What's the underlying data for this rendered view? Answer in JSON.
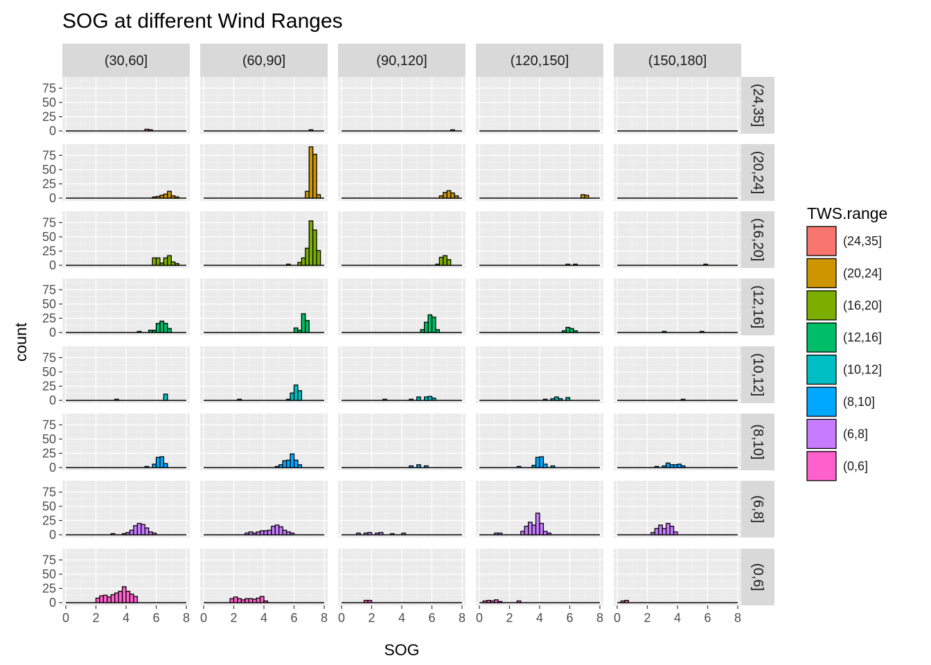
{
  "chart_data": {
    "type": "bar",
    "title": "SOG at different Wind Ranges",
    "xlabel": "SOG",
    "ylabel": "count",
    "xlim": [
      0,
      8
    ],
    "ylim": [
      0,
      90
    ],
    "x_ticks": [
      "0",
      "2",
      "4",
      "6",
      "8"
    ],
    "y_ticks": [
      "0",
      "25",
      "50",
      "75"
    ],
    "binwidth": 0.25,
    "columns": [
      "(30,60]",
      "(60,90]",
      "(90,120]",
      "(120,150]",
      "(150,180]"
    ],
    "rows": [
      "(24,35]",
      "(20,24]",
      "(16,20]",
      "(12,16]",
      "(10,12]",
      "(8,10]",
      "(6,8]",
      "(0,6]"
    ],
    "legend": {
      "title": "TWS.range",
      "placement": "right",
      "items": [
        {
          "label": "(24,35]",
          "color": "#F8766D"
        },
        {
          "label": "(20,24]",
          "color": "#CD9600"
        },
        {
          "label": "(16,20]",
          "color": "#7CAE00"
        },
        {
          "label": "(12,16]",
          "color": "#00BE67"
        },
        {
          "label": "(10,12]",
          "color": "#00BFC4"
        },
        {
          "label": "(8,10]",
          "color": "#00A9FF"
        },
        {
          "label": "(6,8]",
          "color": "#C77CFF"
        },
        {
          "label": "(0,6]",
          "color": "#FF61CC"
        }
      ]
    },
    "panels": [
      {
        "row": "(24,35]",
        "col": "(30,60]",
        "bins": [
          [
            5.375,
            3
          ],
          [
            5.625,
            2
          ]
        ]
      },
      {
        "row": "(24,35]",
        "col": "(60,90]",
        "bins": [
          [
            7.125,
            2
          ]
        ]
      },
      {
        "row": "(24,35]",
        "col": "(90,120]",
        "bins": [
          [
            7.375,
            2
          ]
        ]
      },
      {
        "row": "(20,24]",
        "col": "(30,60]",
        "bins": [
          [
            5.875,
            2
          ],
          [
            6.125,
            3
          ],
          [
            6.375,
            5
          ],
          [
            6.625,
            7
          ],
          [
            6.875,
            12
          ],
          [
            7.125,
            4
          ],
          [
            7.375,
            2
          ]
        ]
      },
      {
        "row": "(20,24]",
        "col": "(60,90]",
        "bins": [
          [
            6.875,
            12
          ],
          [
            7.125,
            90
          ],
          [
            7.375,
            77
          ],
          [
            7.625,
            6
          ]
        ]
      },
      {
        "row": "(20,24]",
        "col": "(90,120]",
        "bins": [
          [
            6.625,
            4
          ],
          [
            6.875,
            10
          ],
          [
            7.125,
            13
          ],
          [
            7.375,
            9
          ],
          [
            7.625,
            4
          ]
        ]
      },
      {
        "row": "(20,24]",
        "col": "(120,150]",
        "bins": [
          [
            6.875,
            6
          ],
          [
            7.125,
            5
          ]
        ]
      },
      {
        "row": "(16,20]",
        "col": "(30,60]",
        "bins": [
          [
            5.875,
            13
          ],
          [
            6.125,
            13
          ],
          [
            6.375,
            4
          ],
          [
            6.625,
            13
          ],
          [
            6.875,
            17
          ],
          [
            7.125,
            6
          ],
          [
            7.375,
            3
          ]
        ]
      },
      {
        "row": "(16,20]",
        "col": "(60,90]",
        "bins": [
          [
            5.625,
            2
          ],
          [
            6.375,
            5
          ],
          [
            6.625,
            13
          ],
          [
            6.875,
            30
          ],
          [
            7.125,
            78
          ],
          [
            7.375,
            62
          ],
          [
            7.625,
            26
          ]
        ]
      },
      {
        "row": "(16,20]",
        "col": "(90,120]",
        "bins": [
          [
            6.375,
            2
          ],
          [
            6.625,
            14
          ],
          [
            6.875,
            17
          ],
          [
            7.125,
            10
          ]
        ]
      },
      {
        "row": "(16,20]",
        "col": "(120,150]",
        "bins": [
          [
            5.875,
            2
          ],
          [
            6.375,
            2
          ]
        ]
      },
      {
        "row": "(16,20]",
        "col": "(150,180]",
        "bins": [
          [
            5.875,
            2
          ]
        ]
      },
      {
        "row": "(12,16]",
        "col": "(30,60]",
        "bins": [
          [
            4.875,
            2
          ],
          [
            5.625,
            4
          ],
          [
            5.875,
            4
          ],
          [
            6.125,
            16
          ],
          [
            6.375,
            20
          ],
          [
            6.625,
            16
          ],
          [
            6.875,
            7
          ]
        ]
      },
      {
        "row": "(12,16]",
        "col": "(60,90]",
        "bins": [
          [
            6.125,
            8
          ],
          [
            6.375,
            4
          ],
          [
            6.625,
            33
          ],
          [
            6.875,
            21
          ]
        ]
      },
      {
        "row": "(12,16]",
        "col": "(90,120]",
        "bins": [
          [
            5.375,
            5
          ],
          [
            5.625,
            18
          ],
          [
            5.875,
            31
          ],
          [
            6.125,
            27
          ],
          [
            6.375,
            5
          ]
        ]
      },
      {
        "row": "(12,16]",
        "col": "(120,150]",
        "bins": [
          [
            5.625,
            3
          ],
          [
            5.875,
            9
          ],
          [
            6.125,
            7
          ],
          [
            6.375,
            3
          ]
        ]
      },
      {
        "row": "(12,16]",
        "col": "(150,180]",
        "bins": [
          [
            3.125,
            2
          ],
          [
            5.625,
            2
          ]
        ]
      },
      {
        "row": "(10,12]",
        "col": "(30,60]",
        "bins": [
          [
            3.375,
            2
          ],
          [
            6.625,
            11
          ]
        ]
      },
      {
        "row": "(10,12]",
        "col": "(60,90]",
        "bins": [
          [
            2.375,
            2
          ],
          [
            5.625,
            2
          ],
          [
            5.875,
            13
          ],
          [
            6.125,
            27
          ],
          [
            6.375,
            17
          ]
        ]
      },
      {
        "row": "(10,12]",
        "col": "(90,120]",
        "bins": [
          [
            2.875,
            2
          ],
          [
            4.625,
            2
          ],
          [
            5.125,
            6
          ],
          [
            5.625,
            6
          ],
          [
            5.875,
            7
          ],
          [
            6.125,
            4
          ]
        ]
      },
      {
        "row": "(10,12]",
        "col": "(120,150]",
        "bins": [
          [
            4.375,
            2
          ],
          [
            4.875,
            3
          ],
          [
            5.125,
            6
          ],
          [
            5.375,
            3
          ],
          [
            5.875,
            5
          ]
        ]
      },
      {
        "row": "(10,12]",
        "col": "(150,180]",
        "bins": [
          [
            4.375,
            2
          ]
        ]
      },
      {
        "row": "(8,10]",
        "col": "(30,60]",
        "bins": [
          [
            5.375,
            2
          ],
          [
            5.875,
            6
          ],
          [
            6.125,
            18
          ],
          [
            6.375,
            19
          ],
          [
            6.625,
            7
          ]
        ]
      },
      {
        "row": "(8,10]",
        "col": "(60,90]",
        "bins": [
          [
            4.875,
            2
          ],
          [
            5.125,
            5
          ],
          [
            5.375,
            12
          ],
          [
            5.625,
            13
          ],
          [
            5.875,
            24
          ],
          [
            6.125,
            13
          ],
          [
            6.375,
            5
          ]
        ]
      },
      {
        "row": "(8,10]",
        "col": "(90,120]",
        "bins": [
          [
            4.625,
            3
          ],
          [
            5.125,
            5
          ],
          [
            5.625,
            3
          ]
        ]
      },
      {
        "row": "(8,10]",
        "col": "(120,150]",
        "bins": [
          [
            2.625,
            2
          ],
          [
            3.625,
            4
          ],
          [
            3.875,
            18
          ],
          [
            4.125,
            19
          ],
          [
            4.375,
            6
          ],
          [
            4.875,
            3
          ]
        ]
      },
      {
        "row": "(8,10]",
        "col": "(150,180]",
        "bins": [
          [
            2.625,
            2
          ],
          [
            3.125,
            3
          ],
          [
            3.375,
            8
          ],
          [
            3.625,
            5
          ],
          [
            3.875,
            5
          ],
          [
            4.125,
            6
          ],
          [
            4.375,
            3
          ]
        ]
      },
      {
        "row": "(6,8]",
        "col": "(30,60]",
        "bins": [
          [
            3.125,
            2
          ],
          [
            3.875,
            2
          ],
          [
            4.125,
            4
          ],
          [
            4.375,
            8
          ],
          [
            4.625,
            16
          ],
          [
            4.875,
            20
          ],
          [
            5.125,
            18
          ],
          [
            5.375,
            12
          ],
          [
            5.625,
            5
          ],
          [
            5.875,
            3
          ]
        ]
      },
      {
        "row": "(6,8]",
        "col": "(60,90]",
        "bins": [
          [
            2.875,
            3
          ],
          [
            3.125,
            5
          ],
          [
            3.375,
            3
          ],
          [
            3.625,
            5
          ],
          [
            3.875,
            7
          ],
          [
            4.125,
            7
          ],
          [
            4.375,
            8
          ],
          [
            4.625,
            15
          ],
          [
            4.875,
            17
          ],
          [
            5.125,
            14
          ],
          [
            5.375,
            8
          ],
          [
            5.625,
            5
          ],
          [
            5.875,
            3
          ]
        ]
      },
      {
        "row": "(6,8]",
        "col": "(90,120]",
        "bins": [
          [
            1.125,
            3
          ],
          [
            1.625,
            3
          ],
          [
            1.875,
            4
          ],
          [
            2.375,
            3
          ],
          [
            2.625,
            4
          ],
          [
            3.375,
            2
          ],
          [
            4.125,
            3
          ]
        ]
      },
      {
        "row": "(6,8]",
        "col": "(120,150]",
        "bins": [
          [
            1.125,
            3
          ],
          [
            1.375,
            3
          ],
          [
            2.875,
            6
          ],
          [
            3.125,
            15
          ],
          [
            3.375,
            22
          ],
          [
            3.625,
            17
          ],
          [
            3.875,
            38
          ],
          [
            4.125,
            20
          ],
          [
            4.375,
            6
          ],
          [
            4.625,
            3
          ]
        ]
      },
      {
        "row": "(6,8]",
        "col": "(150,180]",
        "bins": [
          [
            2.375,
            4
          ],
          [
            2.625,
            11
          ],
          [
            2.875,
            17
          ],
          [
            3.125,
            11
          ],
          [
            3.375,
            20
          ],
          [
            3.625,
            15
          ],
          [
            3.875,
            5
          ]
        ]
      },
      {
        "row": "(0,6]",
        "col": "(30,60]",
        "bins": [
          [
            2.125,
            8
          ],
          [
            2.375,
            12
          ],
          [
            2.625,
            13
          ],
          [
            2.875,
            10
          ],
          [
            3.125,
            14
          ],
          [
            3.375,
            17
          ],
          [
            3.625,
            20
          ],
          [
            3.875,
            28
          ],
          [
            4.125,
            20
          ],
          [
            4.375,
            15
          ],
          [
            4.625,
            11
          ]
        ]
      },
      {
        "row": "(0,6]",
        "col": "(60,90]",
        "bins": [
          [
            1.875,
            7
          ],
          [
            2.125,
            10
          ],
          [
            2.375,
            7
          ],
          [
            2.625,
            5
          ],
          [
            2.875,
            7
          ],
          [
            3.125,
            7
          ],
          [
            3.375,
            6
          ],
          [
            3.625,
            8
          ],
          [
            3.875,
            11
          ],
          [
            4.125,
            3
          ]
        ]
      },
      {
        "row": "(0,6]",
        "col": "(90,120]",
        "bins": [
          [
            1.625,
            4
          ],
          [
            1.875,
            4
          ]
        ]
      },
      {
        "row": "(0,6]",
        "col": "(120,150]",
        "bins": [
          [
            0.375,
            3
          ],
          [
            0.625,
            4
          ],
          [
            0.875,
            3
          ],
          [
            1.125,
            5
          ],
          [
            1.375,
            2
          ],
          [
            2.625,
            3
          ]
        ]
      },
      {
        "row": "(0,6]",
        "col": "(150,180]",
        "bins": [
          [
            0.375,
            3
          ],
          [
            0.625,
            4
          ]
        ]
      }
    ]
  }
}
